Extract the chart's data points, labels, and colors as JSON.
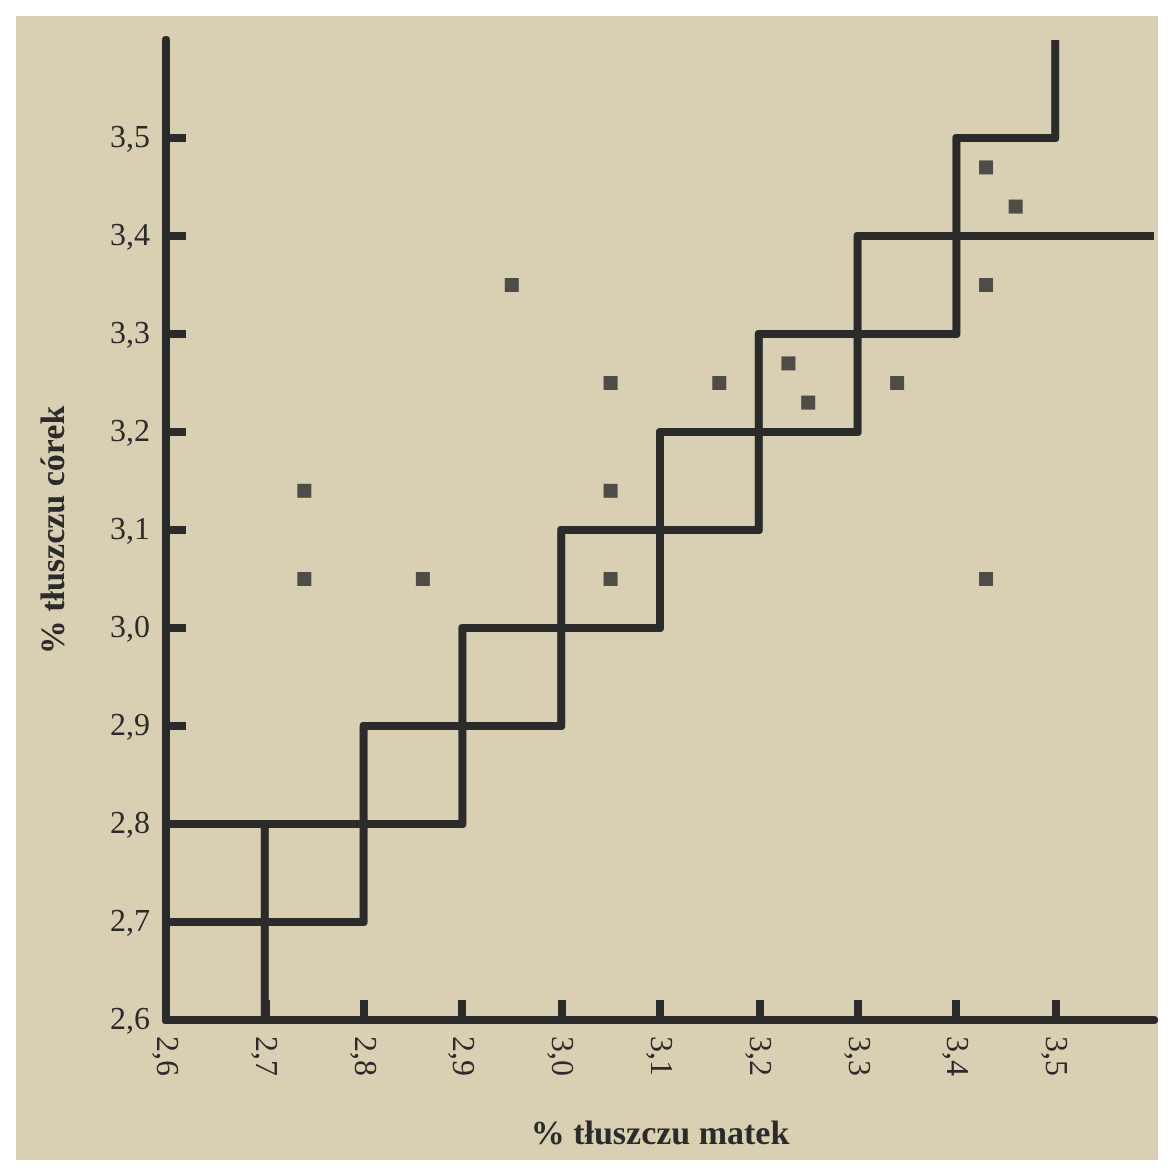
{
  "chart_data": {
    "type": "scatter",
    "xlabel": "% tłuszczu matek",
    "ylabel": "% tłuszczu córek",
    "xlim": [
      2.6,
      3.6
    ],
    "ylim": [
      2.6,
      3.6
    ],
    "xticks": [
      {
        "value": 2.6,
        "label": "2,6"
      },
      {
        "value": 2.7,
        "label": "2,7"
      },
      {
        "value": 2.8,
        "label": "2,8"
      },
      {
        "value": 2.9,
        "label": "2,9"
      },
      {
        "value": 3.0,
        "label": "3,0"
      },
      {
        "value": 3.1,
        "label": "3,1"
      },
      {
        "value": 3.2,
        "label": "3,2"
      },
      {
        "value": 3.3,
        "label": "3,3"
      },
      {
        "value": 3.4,
        "label": "3,4"
      },
      {
        "value": 3.5,
        "label": "3,5"
      }
    ],
    "yticks": [
      {
        "value": 2.6,
        "label": "2,6"
      },
      {
        "value": 2.7,
        "label": "2,7"
      },
      {
        "value": 2.8,
        "label": "2,8"
      },
      {
        "value": 2.9,
        "label": "2,9"
      },
      {
        "value": 3.0,
        "label": "3,0"
      },
      {
        "value": 3.1,
        "label": "3,1"
      },
      {
        "value": 3.2,
        "label": "3,2"
      },
      {
        "value": 3.3,
        "label": "3,3"
      },
      {
        "value": 3.4,
        "label": "3,4"
      },
      {
        "value": 3.5,
        "label": "3,5"
      }
    ],
    "grid": false,
    "series": [
      {
        "marker": "square",
        "color": "#2b2b2b",
        "x": [
          2.74,
          2.74,
          2.86,
          2.95,
          3.05,
          3.05,
          3.05,
          3.16,
          3.23,
          3.25,
          3.34,
          3.43,
          3.46,
          3.43,
          3.43
        ],
        "values": [
          3.14,
          3.05,
          3.05,
          3.35,
          3.25,
          3.14,
          3.05,
          3.25,
          3.27,
          3.23,
          3.25,
          3.47,
          3.43,
          3.35,
          3.05
        ]
      },
      {
        "type": "line",
        "marker": "none",
        "color": "#2b2b2b",
        "x": [
          2.6,
          2.8,
          2.8,
          2.9,
          2.9,
          3.0,
          3.0,
          3.1,
          3.1,
          3.2,
          3.2,
          3.3,
          3.3,
          3.4,
          3.4,
          3.5,
          3.5
        ],
        "values": [
          2.8,
          2.8,
          2.9,
          2.9,
          3.0,
          3.0,
          3.1,
          3.1,
          3.2,
          3.2,
          3.3,
          3.3,
          3.4,
          3.4,
          3.5,
          3.5,
          3.6
        ]
      },
      {
        "type": "line",
        "marker": "none",
        "color": "#2b2b2b",
        "x": [
          2.7,
          2.7
        ],
        "values": [
          2.6,
          2.8
        ]
      },
      {
        "type": "line",
        "marker": "none",
        "color": "#2b2b2b",
        "x": [
          2.6,
          2.8,
          2.8,
          2.9,
          2.9,
          3.0,
          3.0,
          3.1,
          3.1,
          3.2,
          3.2,
          3.3,
          3.3,
          3.4,
          3.4,
          3.6
        ],
        "values": [
          2.7,
          2.7,
          2.8,
          2.8,
          2.9,
          2.9,
          3.0,
          3.0,
          3.1,
          3.1,
          3.2,
          3.2,
          3.3,
          3.3,
          3.4,
          3.4
        ]
      }
    ]
  }
}
